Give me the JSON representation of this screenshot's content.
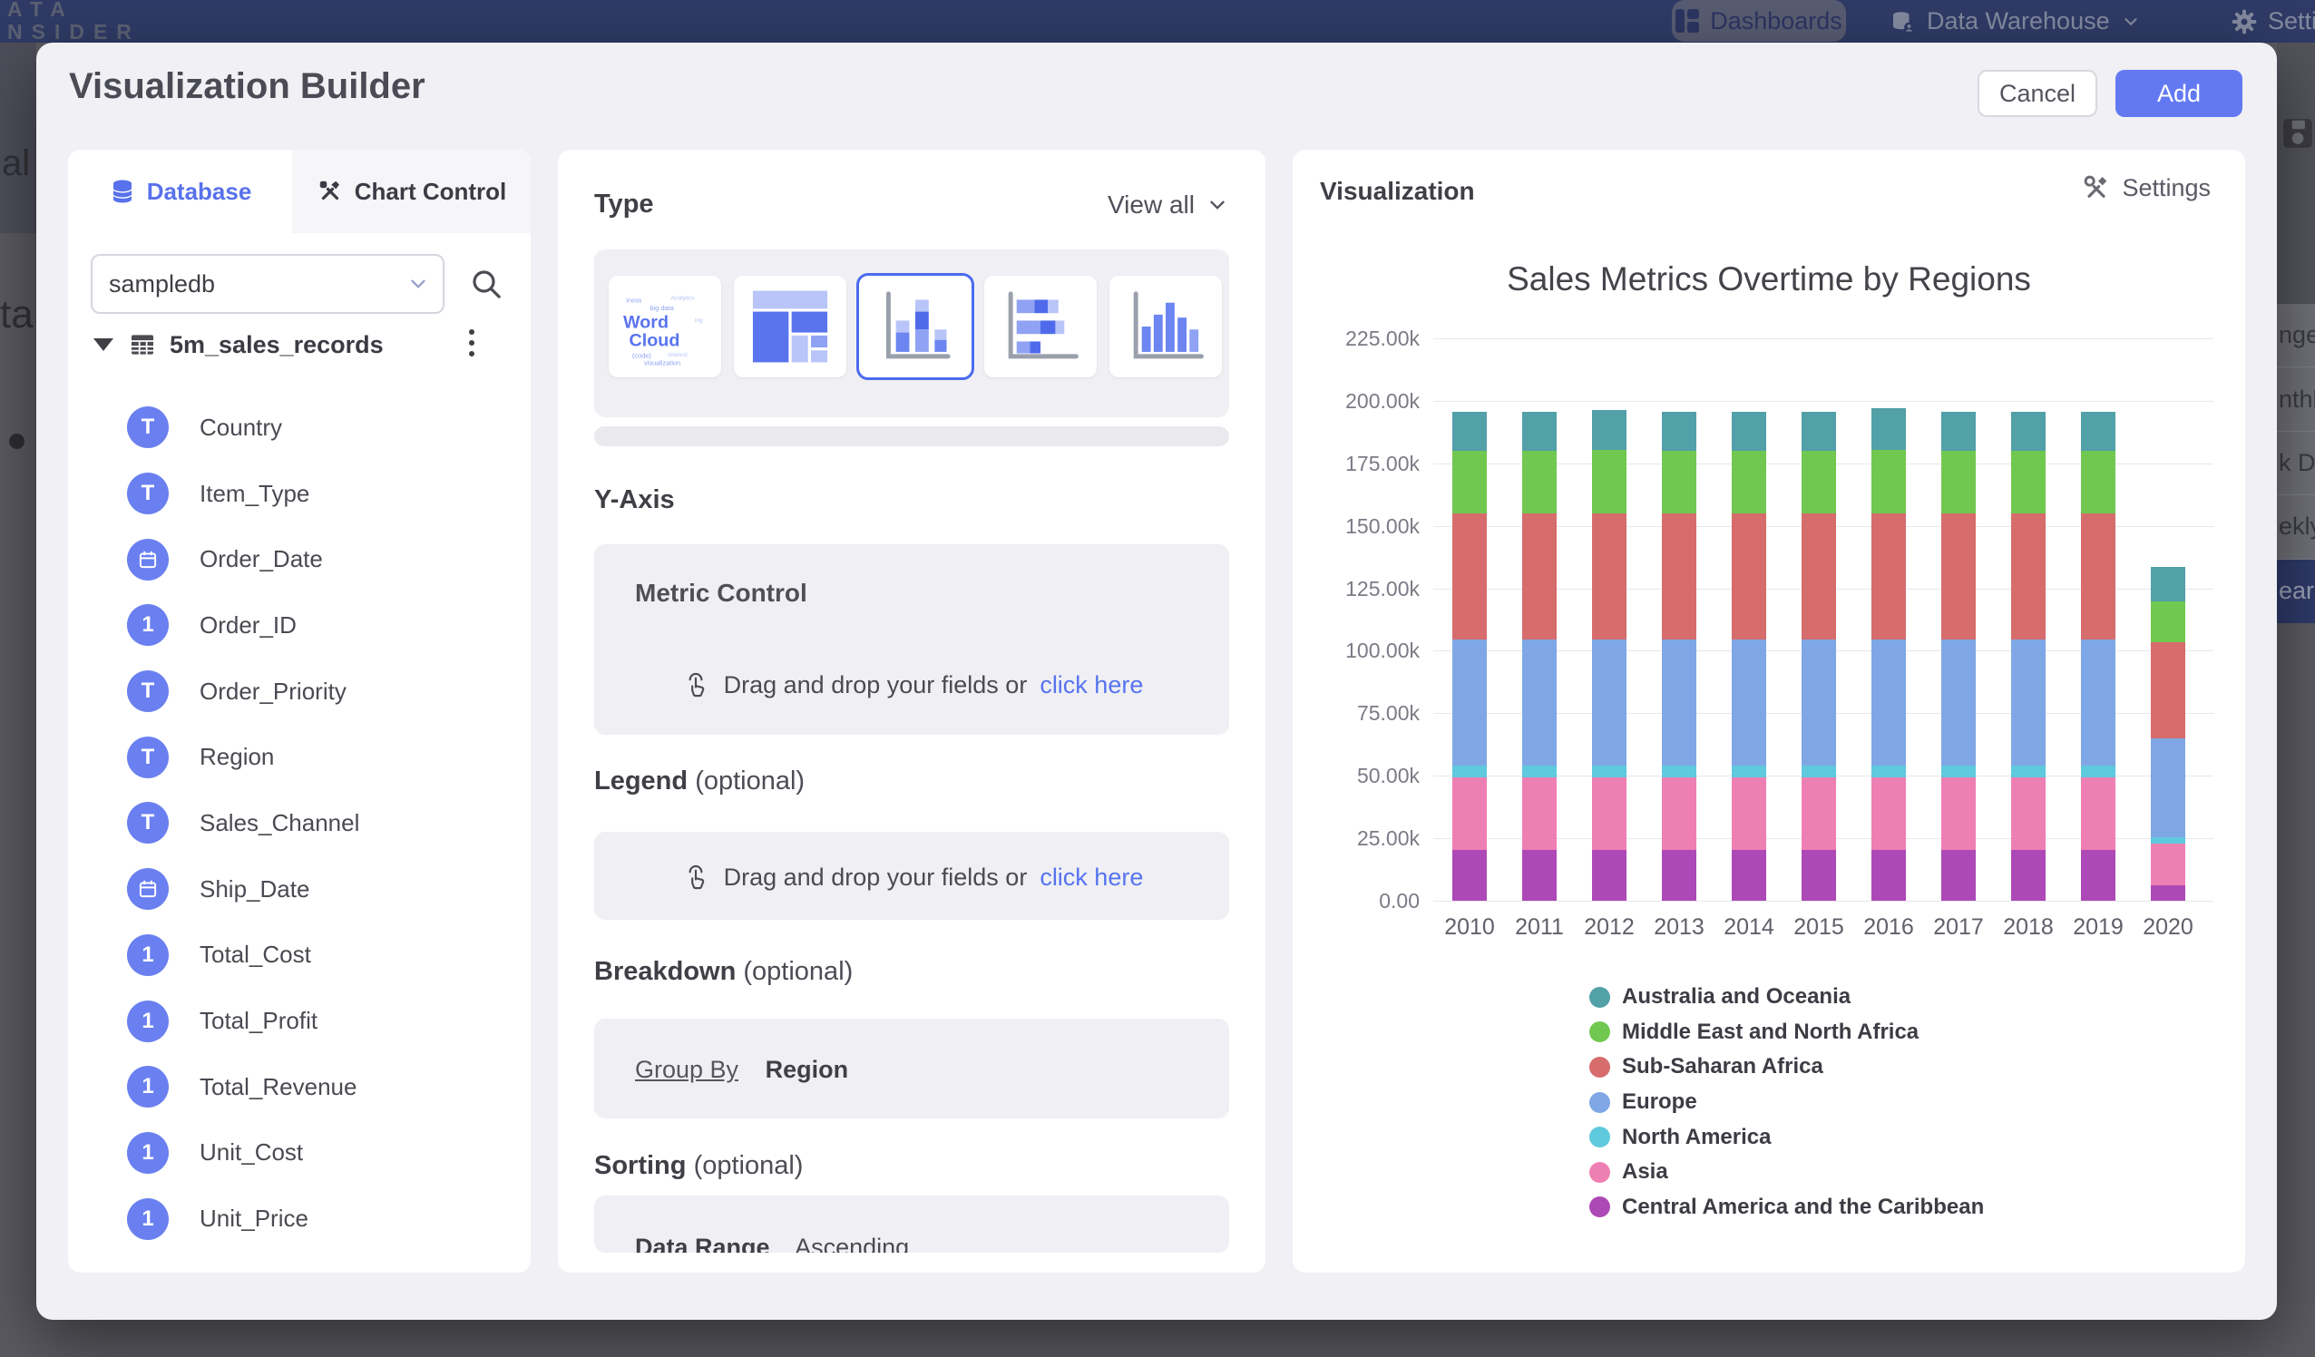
{
  "topbar": {
    "logo_line1": "ATA",
    "logo_line2": "NSIDER",
    "dashboards": "Dashboards",
    "data_warehouse": "Data Warehouse",
    "settings": "Settings"
  },
  "background": {
    "left_fragments": {
      "f1": "al",
      "f2": "ta"
    },
    "dropdown": {
      "items": [
        {
          "label": "nge",
          "selected": false
        },
        {
          "label": "nthly",
          "selected": false
        },
        {
          "label": "k Date",
          "selected": false
        },
        {
          "label": "ekly",
          "selected": false
        },
        {
          "label": "ear",
          "selected": true
        }
      ]
    }
  },
  "modal": {
    "title": "Visualization Builder",
    "cancel_label": "Cancel",
    "add_label": "Add"
  },
  "left_panel": {
    "tab_database": "Database",
    "tab_chart_control": "Chart Control",
    "db_select_value": "sampledb",
    "table_name": "5m_sales_records",
    "fields": [
      {
        "name": "Country",
        "icon": "text"
      },
      {
        "name": "Item_Type",
        "icon": "text"
      },
      {
        "name": "Order_Date",
        "icon": "date"
      },
      {
        "name": "Order_ID",
        "icon": "number"
      },
      {
        "name": "Order_Priority",
        "icon": "text"
      },
      {
        "name": "Region",
        "icon": "text"
      },
      {
        "name": "Sales_Channel",
        "icon": "text"
      },
      {
        "name": "Ship_Date",
        "icon": "date"
      },
      {
        "name": "Total_Cost",
        "icon": "number"
      },
      {
        "name": "Total_Profit",
        "icon": "number"
      },
      {
        "name": "Total_Revenue",
        "icon": "number"
      },
      {
        "name": "Unit_Cost",
        "icon": "number"
      },
      {
        "name": "Unit_Price",
        "icon": "number"
      }
    ]
  },
  "middle_panel": {
    "type_heading": "Type",
    "view_all": "View all",
    "word_cloud": {
      "w": "Word",
      "c": "Cloud"
    },
    "y_axis_heading": "Y-Axis",
    "metric": {
      "title": "Metric Control",
      "drag_text": "Drag and drop your fields or",
      "link_text": "click here"
    },
    "legend": {
      "heading": "Legend",
      "optional": "(optional)",
      "drag_text": "Drag and drop your fields or",
      "link_text": "click here"
    },
    "breakdown": {
      "heading": "Breakdown",
      "optional": "(optional)",
      "group_by": "Group By",
      "value": "Region"
    },
    "sorting": {
      "heading": "Sorting",
      "optional": "(optional)",
      "field": "Data Range",
      "order": "Ascending"
    }
  },
  "right_panel": {
    "heading": "Visualization",
    "settings_label": "Settings"
  },
  "chart_data": {
    "type": "bar",
    "stacked": true,
    "title": "Sales Metrics Overtime by Regions",
    "xlabel": "",
    "ylabel": "",
    "grid": true,
    "legend_position": "bottom",
    "ylim": [
      0,
      236000
    ],
    "categories": [
      "2010",
      "2011",
      "2012",
      "2013",
      "2014",
      "2015",
      "2016",
      "2017",
      "2018",
      "2019",
      "2020"
    ],
    "y_ticks": [
      {
        "label": "225.00k",
        "value": 225000
      },
      {
        "label": "200.00k",
        "value": 200000
      },
      {
        "label": "175.00k",
        "value": 175000
      },
      {
        "label": "150.00k",
        "value": 150000
      },
      {
        "label": "125.00k",
        "value": 125000
      },
      {
        "label": "100.00k",
        "value": 100000
      },
      {
        "label": "75.00k",
        "value": 75000
      },
      {
        "label": "50.00k",
        "value": 50000
      },
      {
        "label": "25.00k",
        "value": 25000
      },
      {
        "label": "0.00",
        "value": 0
      }
    ],
    "series": [
      {
        "name": "Central America and the Caribbean",
        "color": "#ad49b7",
        "values": [
          20500,
          20500,
          20500,
          20500,
          20500,
          20500,
          20500,
          20500,
          20500,
          20500,
          6300
        ]
      },
      {
        "name": "Asia",
        "color": "#ee7fb3",
        "values": [
          29000,
          29000,
          29000,
          29000,
          29000,
          29000,
          29000,
          29000,
          29000,
          29000,
          16400
        ]
      },
      {
        "name": "North America",
        "color": "#5fc9dd",
        "values": [
          4500,
          4500,
          4500,
          4500,
          4500,
          4500,
          4500,
          4500,
          4500,
          4500,
          2600
        ]
      },
      {
        "name": "Europe",
        "color": "#7fa7e5",
        "values": [
          50500,
          50500,
          50500,
          50500,
          50500,
          50500,
          50500,
          50500,
          50500,
          50500,
          39600
        ]
      },
      {
        "name": "Sub-Saharan Africa",
        "color": "#d66c6c",
        "values": [
          50500,
          50500,
          50500,
          50500,
          50500,
          50500,
          50500,
          50500,
          50500,
          50500,
          38500
        ]
      },
      {
        "name": "Middle East and North Africa",
        "color": "#70c850",
        "values": [
          25000,
          25000,
          25500,
          25000,
          25000,
          25000,
          25500,
          25000,
          25000,
          25000,
          16400
        ]
      },
      {
        "name": "Australia and Oceania",
        "color": "#52a0a8",
        "values": [
          15500,
          15500,
          16000,
          15500,
          15500,
          15500,
          16500,
          15500,
          15500,
          15500,
          13700
        ]
      }
    ]
  }
}
